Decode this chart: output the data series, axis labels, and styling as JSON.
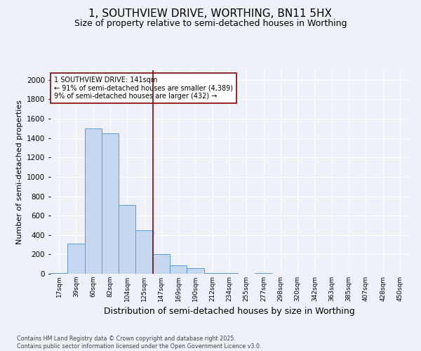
{
  "title1": "1, SOUTHVIEW DRIVE, WORTHING, BN11 5HX",
  "title2": "Size of property relative to semi-detached houses in Worthing",
  "xlabel": "Distribution of semi-detached houses by size in Worthing",
  "ylabel": "Number of semi-detached properties",
  "footnote": "Contains HM Land Registry data © Crown copyright and database right 2025.\nContains public sector information licensed under the Open Government Licence v3.0.",
  "categories": [
    "17sqm",
    "39sqm",
    "60sqm",
    "82sqm",
    "104sqm",
    "125sqm",
    "147sqm",
    "169sqm",
    "190sqm",
    "212sqm",
    "234sqm",
    "255sqm",
    "277sqm",
    "298sqm",
    "320sqm",
    "342sqm",
    "363sqm",
    "385sqm",
    "407sqm",
    "428sqm",
    "450sqm"
  ],
  "values": [
    10,
    310,
    1500,
    1450,
    710,
    450,
    200,
    90,
    55,
    10,
    5,
    0,
    10,
    0,
    0,
    0,
    0,
    0,
    0,
    0,
    0
  ],
  "bar_color": "#c5d8f0",
  "bar_edgecolor": "#5b9bd5",
  "vline_color": "#8b0000",
  "annotation_text": "1 SOUTHVIEW DRIVE: 141sqm\n← 91% of semi-detached houses are smaller (4,389)\n9% of semi-detached houses are larger (432) →",
  "annotation_box_color": "#ffffff",
  "annotation_box_edgecolor": "#8b0000",
  "ylim": [
    0,
    2100
  ],
  "yticks": [
    0,
    200,
    400,
    600,
    800,
    1000,
    1200,
    1400,
    1600,
    1800,
    2000
  ],
  "background_color": "#eef2f8",
  "plot_background": "#eef2f8",
  "title1_fontsize": 11,
  "title2_fontsize": 9,
  "xlabel_fontsize": 9,
  "ylabel_fontsize": 8
}
